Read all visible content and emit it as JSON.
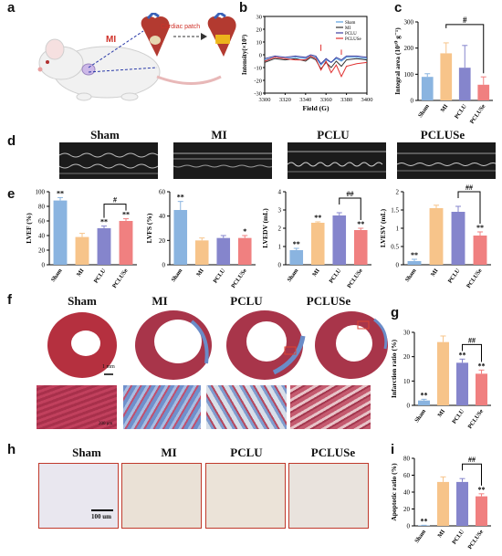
{
  "colors": {
    "sham": "#8ab4e0",
    "mi": "#f7c48a",
    "pclu": "#8585cc",
    "pcluse": "#f08080"
  },
  "panels": {
    "a": "a",
    "b": "b",
    "c": "c",
    "d": "d",
    "e": "e",
    "f": "f",
    "g": "g",
    "h": "h",
    "i": "i"
  },
  "panel_a": {
    "mi_label": "MI",
    "patch_label": "Cardiac patch"
  },
  "group_titles": [
    "Sham",
    "MI",
    "PCLU",
    "PCLUSe"
  ],
  "scale_f": "1 mm",
  "scale_f2": "200 μm",
  "scale_h": "100 um",
  "chart_data": [
    {
      "id": "b",
      "type": "line",
      "xlabel": "Field (G)",
      "ylabel": "Intensity(×10⁵)",
      "xlim": [
        3300,
        3400
      ],
      "ylim": [
        -30,
        30
      ],
      "x_ticks": [
        3300,
        3320,
        3340,
        3360,
        3380,
        3400
      ],
      "y_ticks": [
        30,
        20,
        10,
        0,
        -10,
        -20,
        -30
      ],
      "legend": [
        "Sham",
        "MI",
        "PCLU",
        "PCLUSe"
      ],
      "series": [
        {
          "name": "Sham",
          "color": "#5aa0e0",
          "x": [
            3300,
            3310,
            3320,
            3330,
            3340,
            3345,
            3350,
            3355,
            3360,
            3365,
            3370,
            3375,
            3380,
            3390,
            3400
          ],
          "y": [
            -4,
            -2,
            -3,
            -2,
            -3,
            -1,
            -2,
            -8,
            -4,
            -6,
            -3,
            -5,
            -2,
            -2,
            -3
          ]
        },
        {
          "name": "MI",
          "color": "#333333",
          "x": [
            3300,
            3310,
            3320,
            3330,
            3340,
            3345,
            3350,
            3355,
            3360,
            3365,
            3370,
            3375,
            3380,
            3390,
            3400
          ],
          "y": [
            -6,
            -3,
            -4,
            -3,
            -5,
            -2,
            -4,
            -11,
            -6,
            -10,
            -5,
            -9,
            -4,
            -3,
            -4
          ]
        },
        {
          "name": "PCLU",
          "color": "#3b3b9e",
          "x": [
            3300,
            3310,
            3320,
            3330,
            3340,
            3345,
            3350,
            3355,
            3360,
            3365,
            3370,
            3375,
            3380,
            3390,
            3400
          ],
          "y": [
            -3,
            -1,
            -2,
            -1,
            -2,
            0,
            -1,
            -7,
            -3,
            -6,
            -2,
            -4,
            -1,
            -1,
            -2
          ]
        },
        {
          "name": "PCLUSe",
          "color": "#e03030",
          "x": [
            3300,
            3310,
            3320,
            3330,
            3340,
            3345,
            3350,
            3355,
            3360,
            3365,
            3370,
            3375,
            3380,
            3390,
            3400
          ],
          "y": [
            -5,
            -2,
            -3,
            -4,
            -4,
            -1,
            -3,
            -12,
            -5,
            -14,
            -8,
            -17,
            -9,
            -7,
            -6
          ]
        }
      ]
    },
    {
      "id": "c",
      "type": "bar",
      "ylabel": "Integral area (10¹⁰ g⁻¹)",
      "categories": [
        "Sham",
        "MI",
        "PCLU",
        "PCLUSe"
      ],
      "values": [
        90,
        180,
        125,
        60
      ],
      "errors": [
        12,
        40,
        85,
        30
      ],
      "ylim": [
        0,
        300
      ],
      "y_ticks": [
        0,
        100,
        200,
        300
      ],
      "sig": [
        "",
        "",
        "",
        "#"
      ]
    },
    {
      "id": "e1",
      "type": "bar",
      "ylabel": "LVEF (%)",
      "categories": [
        "Sham",
        "MI",
        "PCLU",
        "PCLUSe"
      ],
      "values": [
        88,
        38,
        50,
        60
      ],
      "errors": [
        4,
        5,
        3,
        3
      ],
      "ylim": [
        0,
        100
      ],
      "y_ticks": [
        0,
        20,
        40,
        60,
        80,
        100
      ],
      "stars": [
        "**",
        "",
        "**",
        "**"
      ],
      "sig": "#"
    },
    {
      "id": "e2",
      "type": "bar",
      "ylabel": "LVFS (%)",
      "categories": [
        "Sham",
        "MI",
        "PCLU",
        "PCLUSe"
      ],
      "values": [
        45,
        20,
        22,
        22
      ],
      "errors": [
        7,
        2,
        2,
        2
      ],
      "ylim": [
        0,
        60
      ],
      "y_ticks": [
        0,
        20,
        40,
        60
      ],
      "stars": [
        "**",
        "",
        "",
        "*"
      ],
      "sig": ""
    },
    {
      "id": "e3",
      "type": "bar",
      "ylabel": "LVEDV (mL)",
      "categories": [
        "Sham",
        "MI",
        "PCLU",
        "PCLUSe"
      ],
      "values": [
        0.8,
        2.3,
        2.7,
        1.9
      ],
      "errors": [
        0.1,
        0.05,
        0.15,
        0.1
      ],
      "ylim": [
        0,
        4
      ],
      "y_ticks": [
        0,
        1,
        2,
        3,
        4
      ],
      "stars": [
        "**",
        "**",
        "",
        "**"
      ],
      "sig": "##"
    },
    {
      "id": "e4",
      "type": "bar",
      "ylabel": "LVESV (mL)",
      "categories": [
        "Sham",
        "MI",
        "PCLU",
        "PCLUSe"
      ],
      "values": [
        0.1,
        1.55,
        1.45,
        0.8
      ],
      "errors": [
        0.05,
        0.08,
        0.15,
        0.1
      ],
      "ylim": [
        0,
        2.0
      ],
      "y_ticks": [
        0.0,
        0.5,
        1.0,
        1.5,
        2.0
      ],
      "stars": [
        "**",
        "",
        "",
        "**"
      ],
      "sig": "##"
    },
    {
      "id": "g",
      "type": "bar",
      "ylabel": "Infarction ratio (%)",
      "categories": [
        "Sham",
        "MI",
        "PCLU",
        "PCLUSe"
      ],
      "values": [
        2,
        26,
        17.5,
        13
      ],
      "errors": [
        0.5,
        2.5,
        1.5,
        1.5
      ],
      "ylim": [
        0,
        30
      ],
      "y_ticks": [
        0,
        10,
        20,
        30
      ],
      "stars": [
        "**",
        "",
        "**",
        "**"
      ],
      "sig": "##"
    },
    {
      "id": "i",
      "type": "bar",
      "ylabel": "Apoptotic ratio (%)",
      "categories": [
        "Sham",
        "MI",
        "PCLU",
        "PCLUSe"
      ],
      "values": [
        0.5,
        52,
        52,
        35
      ],
      "errors": [
        0.2,
        6,
        4,
        3
      ],
      "ylim": [
        0,
        80
      ],
      "y_ticks": [
        0,
        20,
        40,
        60,
        80
      ],
      "stars": [
        "**",
        "",
        "",
        "**"
      ],
      "sig": "##"
    }
  ]
}
